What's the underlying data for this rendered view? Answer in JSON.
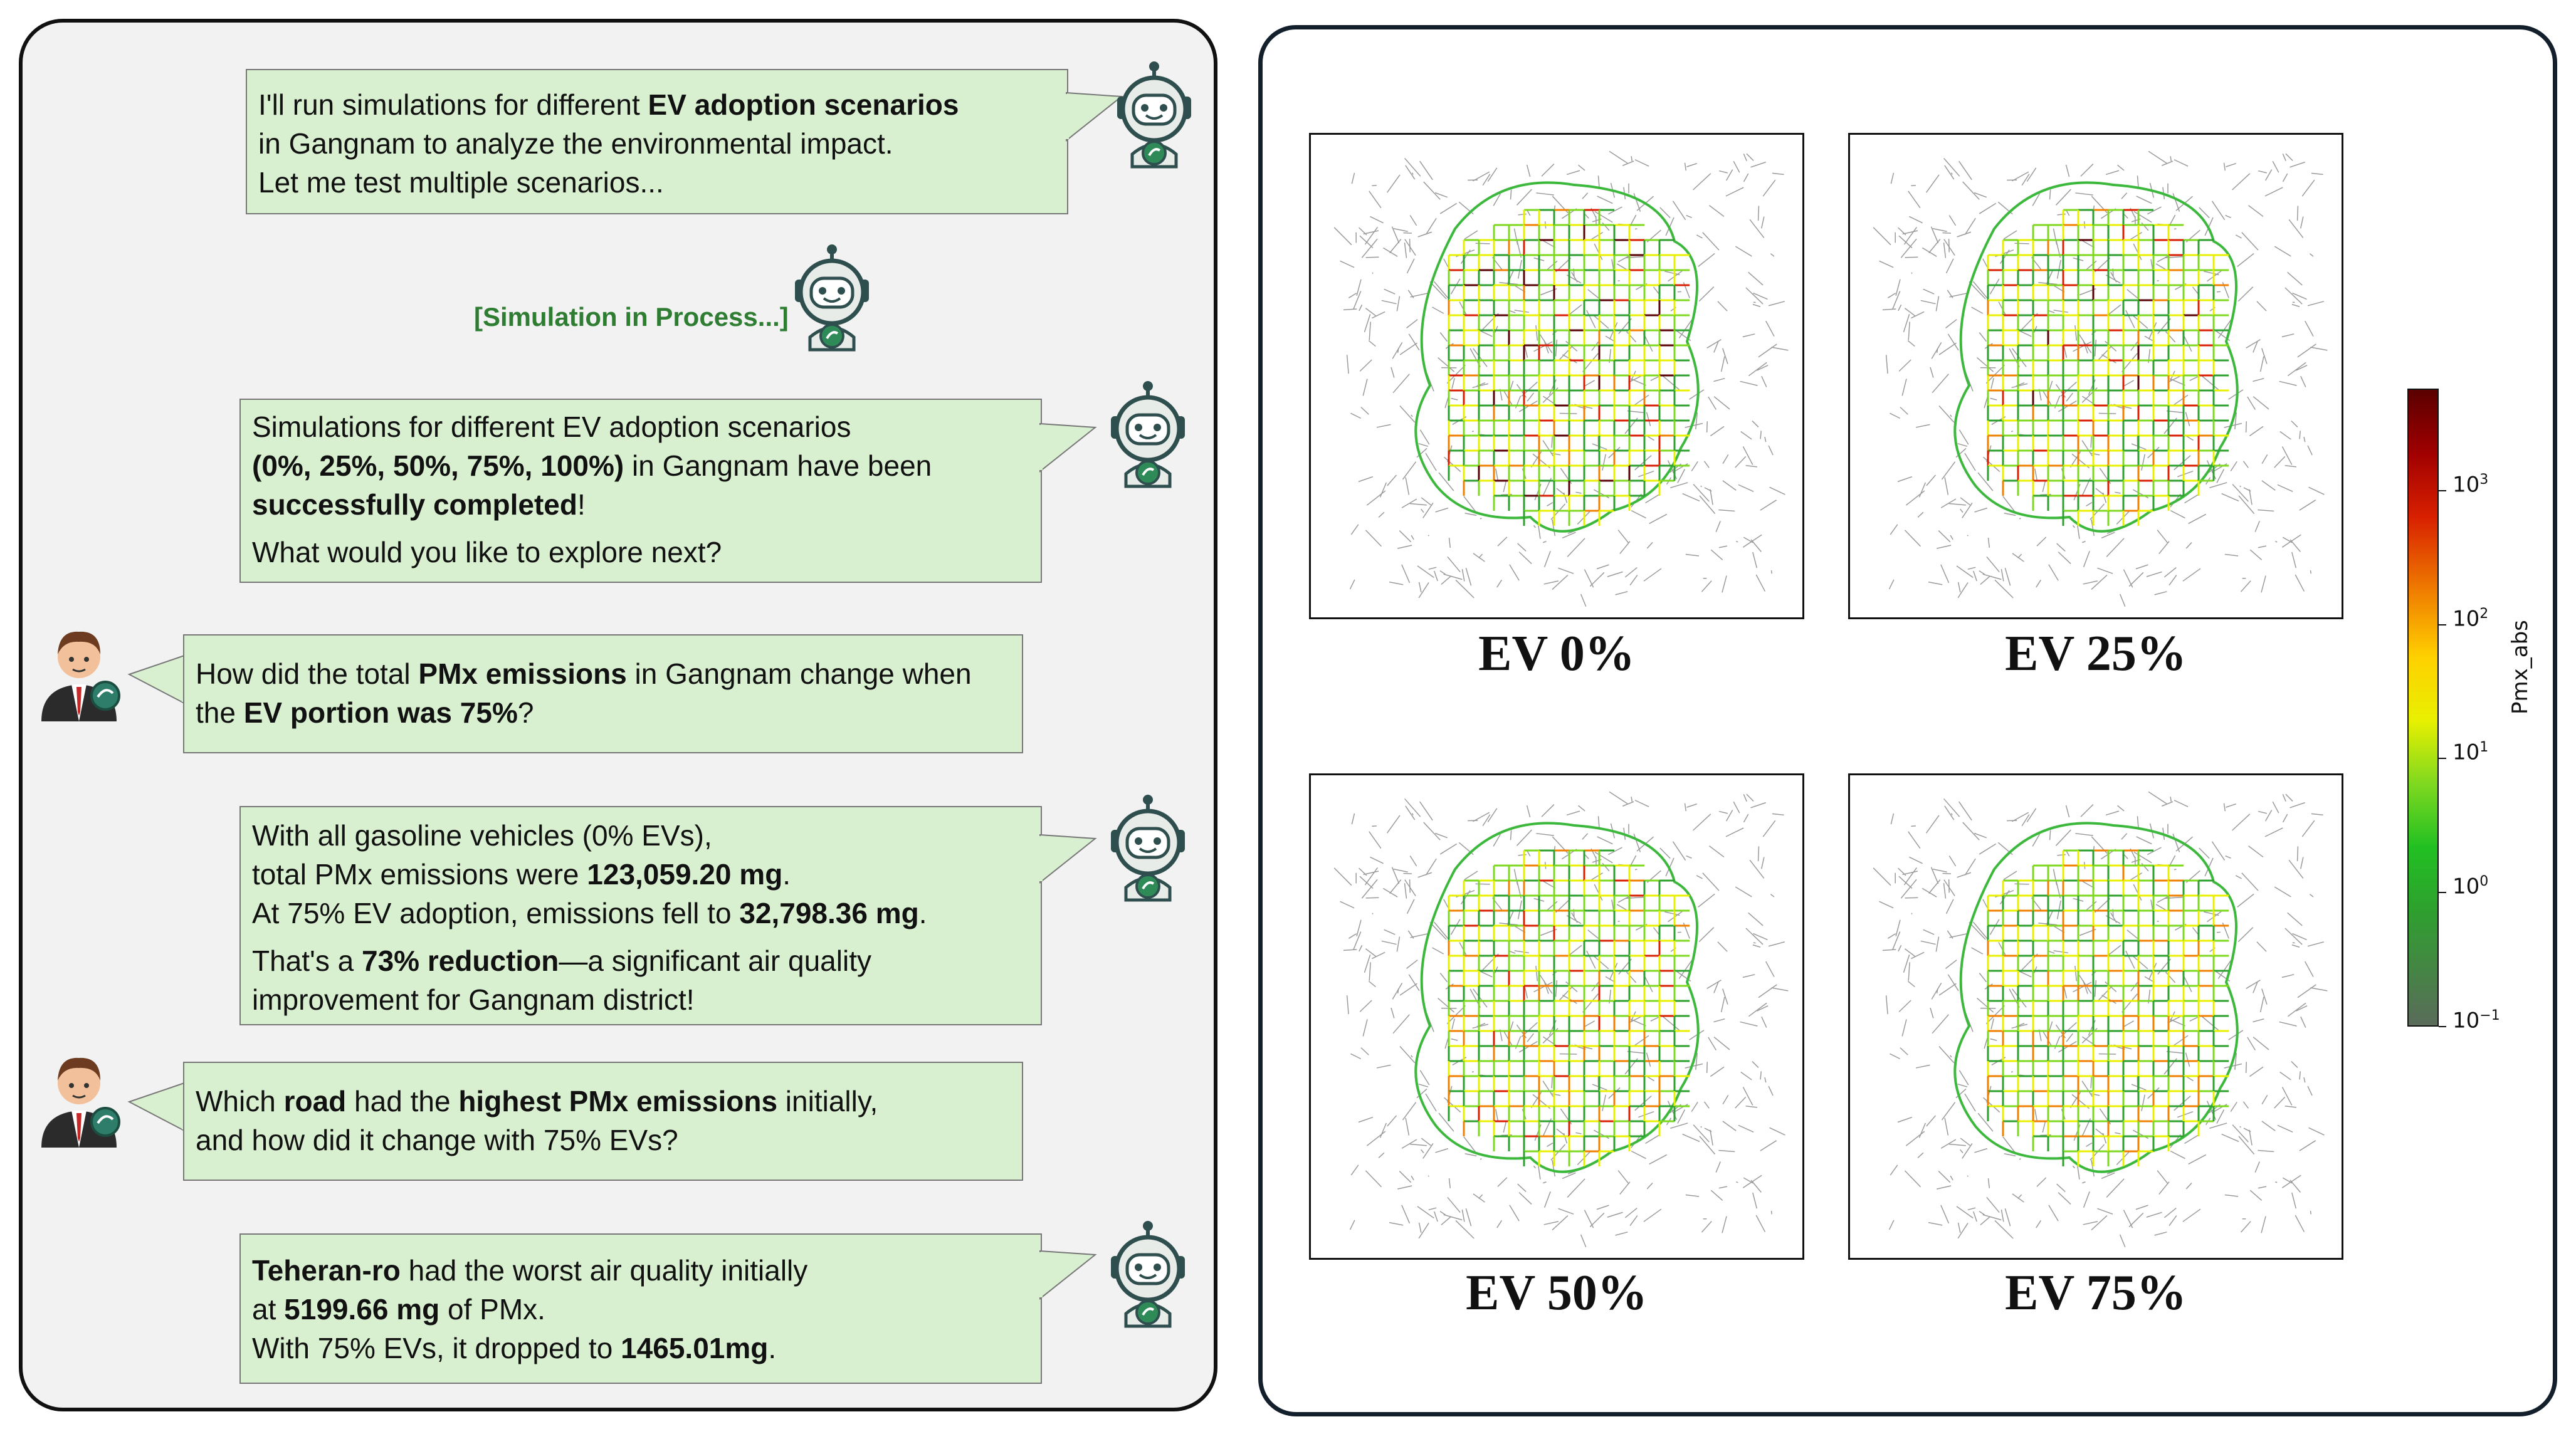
{
  "chat": {
    "messages": [
      {
        "role": "assistant",
        "lines": [
          [
            {
              "t": " I'll run simulations for different "
            },
            {
              "t": "EV adoption scenarios",
              "b": true
            }
          ],
          [
            {
              "t": "in Gangnam to analyze the environmental impact."
            }
          ],
          [
            {
              "t": "Let me test multiple scenarios..."
            }
          ]
        ]
      },
      {
        "role": "status",
        "text": "[Simulation in Process...]"
      },
      {
        "role": "assistant",
        "lines": [
          [
            {
              "t": "Simulations for different EV adoption scenarios"
            }
          ],
          [
            {
              "t": "(0%, 25%, 50%, 75%, 100%)",
              "b": true
            },
            {
              "t": " in Gangnam have been"
            }
          ],
          [
            {
              "t": "successfully completed",
              "b": true
            },
            {
              "t": "!"
            }
          ],
          [
            {
              "t": "What would you like to explore next?",
              "gap": true
            }
          ]
        ]
      },
      {
        "role": "user",
        "lines": [
          [
            {
              "t": "How did the total "
            },
            {
              "t": "PMx emissions",
              "b": true
            },
            {
              "t": " in Gangnam change when"
            }
          ],
          [
            {
              "t": "the "
            },
            {
              "t": "EV portion was 75%",
              "b": true
            },
            {
              "t": "?"
            }
          ]
        ]
      },
      {
        "role": "assistant",
        "lines": [
          [
            {
              "t": "With all gasoline vehicles (0% EVs),"
            }
          ],
          [
            {
              "t": "total PMx emissions were "
            },
            {
              "t": "123,059.20 mg",
              "b": true
            },
            {
              "t": "."
            }
          ],
          [
            {
              "t": "At 75% EV adoption, emissions fell to "
            },
            {
              "t": "32,798.36 mg",
              "b": true
            },
            {
              "t": "."
            }
          ],
          [
            {
              "t": "That's a ",
              "gap": true
            },
            {
              "t": "73% reduction",
              "b": true
            },
            {
              "t": "—a significant air quality"
            }
          ],
          [
            {
              "t": "improvement for Gangnam district!"
            }
          ]
        ]
      },
      {
        "role": "user",
        "lines": [
          [
            {
              "t": "Which "
            },
            {
              "t": "road",
              "b": true
            },
            {
              "t": " had the "
            },
            {
              "t": "highest PMx emissions",
              "b": true
            },
            {
              "t": " initially,"
            }
          ],
          [
            {
              "t": "and how did it change with 75% EVs?"
            }
          ]
        ]
      },
      {
        "role": "assistant",
        "lines": [
          [
            {
              "t": "Teheran-ro",
              "b": true
            },
            {
              "t": " had the worst air quality initially"
            }
          ],
          [
            {
              "t": "at "
            },
            {
              "t": "5199.66 mg",
              "b": true
            },
            {
              "t": " of PMx."
            }
          ],
          [
            {
              "t": "With 75% EVs, it dropped to "
            },
            {
              "t": "1465.01mg",
              "b": true
            },
            {
              "t": "."
            }
          ]
        ]
      }
    ]
  },
  "maps": [
    {
      "label": "EV 0%",
      "intensity": 1.0
    },
    {
      "label": "EV 25%",
      "intensity": 0.78
    },
    {
      "label": "EV 50%",
      "intensity": 0.5
    },
    {
      "label": "EV 75%",
      "intensity": 0.27
    }
  ],
  "colorbar": {
    "label": "Pmx_abs",
    "scale": "log",
    "ticks": [
      {
        "base": "10",
        "exp": "3"
      },
      {
        "base": "10",
        "exp": "2"
      },
      {
        "base": "10",
        "exp": "1"
      },
      {
        "base": "10",
        "exp": "0"
      },
      {
        "base": "10",
        "exp": "−1"
      }
    ],
    "colors": [
      "#5a6b5a",
      "#2ea02e",
      "#7fd820",
      "#e8f000",
      "#f08000",
      "#d82000",
      "#5a0000"
    ]
  }
}
